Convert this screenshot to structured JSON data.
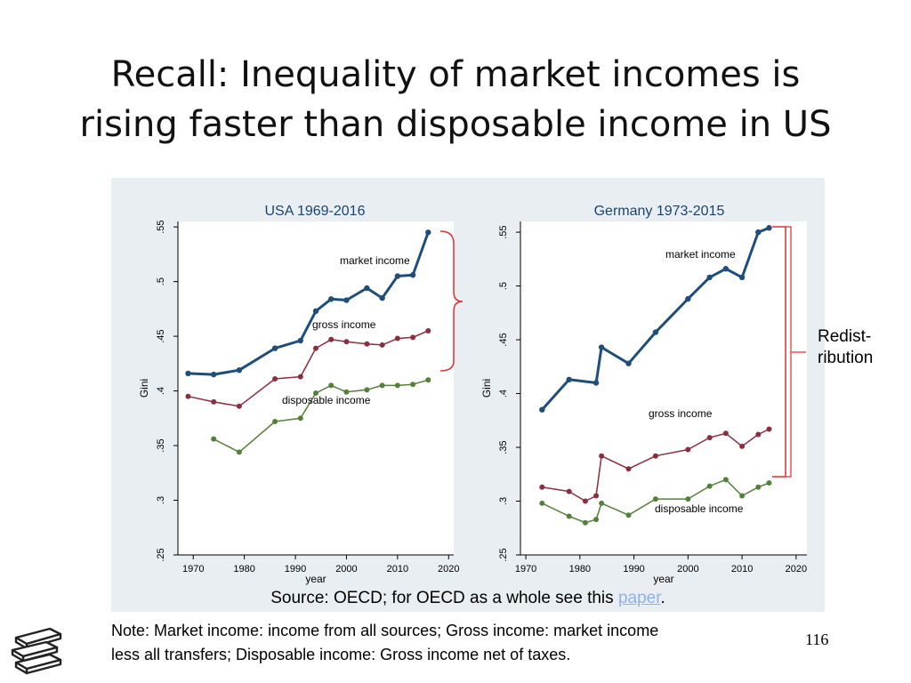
{
  "slide": {
    "title_line1": "Recall: Inequality of market incomes is",
    "title_line2": "rising faster than disposable income in US",
    "redistribution_label_line1": "Redist-",
    "redistribution_label_line2": "ribution",
    "source_prefix": "Source: OECD; for OECD as a whole see this ",
    "source_link": "paper",
    "source_suffix": ".",
    "note_line1": "Note: Market income: income from all sources; Gross income: market income",
    "note_line2": "less all transfers; Disposable income: Gross income net of taxes.",
    "page_number": "116",
    "logo_icon": "stacked-books-icon"
  },
  "colors": {
    "market": "#1f4e79",
    "gross": "#8b2e3f",
    "disposable": "#55803a",
    "brace": "#e03030",
    "title": "#1a4470",
    "panel_bg": "#e9eef2"
  },
  "chart_data": [
    {
      "type": "line",
      "title": "USA 1969-2016",
      "xlabel": "year",
      "ylabel": "Gini",
      "xlim": [
        1967,
        2021
      ],
      "ylim": [
        0.25,
        0.555
      ],
      "xticks": [
        1970,
        1980,
        1990,
        2000,
        2010,
        2020
      ],
      "yticks": [
        0.25,
        0.3,
        0.35,
        0.4,
        0.45,
        0.5,
        0.55
      ],
      "ytick_labels": [
        ".25",
        ".3",
        ".35",
        ".4",
        ".45",
        ".5",
        ".55"
      ],
      "grid": false,
      "series": [
        {
          "name": "market income",
          "x": [
            1969,
            1974,
            1979,
            1986,
            1991,
            1994,
            1997,
            2000,
            2004,
            2007,
            2010,
            2013,
            2016
          ],
          "y": [
            0.416,
            0.415,
            0.419,
            0.439,
            0.446,
            0.473,
            0.484,
            0.483,
            0.494,
            0.485,
            0.505,
            0.506,
            0.545
          ]
        },
        {
          "name": "gross income",
          "x": [
            1969,
            1974,
            1979,
            1986,
            1991,
            1994,
            1997,
            2000,
            2004,
            2007,
            2010,
            2013,
            2016
          ],
          "y": [
            0.395,
            0.39,
            0.386,
            0.411,
            0.413,
            0.439,
            0.447,
            0.445,
            0.443,
            0.442,
            0.448,
            0.449,
            0.455
          ]
        },
        {
          "name": "disposable income",
          "x": [
            1974,
            1979,
            1986,
            1991,
            1994,
            1997,
            2000,
            2004,
            2007,
            2010,
            2013,
            2016
          ],
          "y": [
            0.356,
            0.344,
            0.372,
            0.375,
            0.398,
            0.405,
            0.399,
            0.401,
            0.405,
            0.405,
            0.406,
            0.41
          ]
        }
      ]
    },
    {
      "type": "line",
      "title": "Germany 1973-2015",
      "xlabel": "year",
      "ylabel": "Gini",
      "xlim": [
        1969,
        2022
      ],
      "ylim": [
        0.25,
        0.56
      ],
      "xticks": [
        1970,
        1980,
        1990,
        2000,
        2010,
        2020
      ],
      "yticks": [
        0.25,
        0.3,
        0.35,
        0.4,
        0.45,
        0.5,
        0.55
      ],
      "ytick_labels": [
        ".25",
        ".3",
        ".35",
        ".4",
        ".45",
        ".5",
        ".55"
      ],
      "grid": false,
      "series": [
        {
          "name": "market income",
          "x": [
            1973,
            1978,
            1983,
            1984,
            1989,
            1994,
            2000,
            2004,
            2007,
            2010,
            2013,
            2015
          ],
          "y": [
            0.385,
            0.413,
            0.41,
            0.443,
            0.428,
            0.457,
            0.488,
            0.508,
            0.516,
            0.508,
            0.55,
            0.554
          ]
        },
        {
          "name": "gross income",
          "x": [
            1973,
            1978,
            1981,
            1983,
            1984,
            1989,
            1994,
            2000,
            2004,
            2007,
            2010,
            2013,
            2015
          ],
          "y": [
            0.313,
            0.309,
            0.3,
            0.305,
            0.342,
            0.33,
            0.342,
            0.348,
            0.359,
            0.363,
            0.351,
            0.362,
            0.367
          ]
        },
        {
          "name": "disposable income",
          "x": [
            1973,
            1978,
            1981,
            1983,
            1984,
            1989,
            1994,
            2000,
            2004,
            2007,
            2010,
            2013,
            2015
          ],
          "y": [
            0.298,
            0.286,
            0.28,
            0.283,
            0.298,
            0.287,
            0.302,
            0.302,
            0.314,
            0.32,
            0.305,
            0.313,
            0.317
          ]
        }
      ]
    }
  ]
}
